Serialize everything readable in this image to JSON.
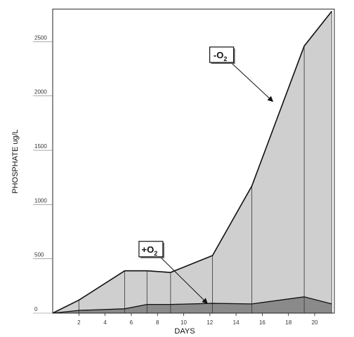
{
  "chart_data": {
    "type": "area",
    "title": "",
    "xlabel": "DAYS",
    "ylabel": "PHOSPHATE   ug/L",
    "x_ticks": [
      2,
      4,
      6,
      8,
      10,
      12,
      14,
      16,
      18,
      20
    ],
    "y_ticks": [
      0,
      500,
      1000,
      1500,
      2000,
      2500
    ],
    "xlim": [
      0,
      21.5
    ],
    "ylim": [
      0,
      2800
    ],
    "series": [
      {
        "name": "-O2",
        "x": [
          0,
          2,
          5.5,
          7.2,
          9,
          12.2,
          15.2,
          19.2,
          21.3
        ],
        "values": [
          0,
          120,
          390,
          390,
          375,
          530,
          1170,
          2460,
          2780
        ]
      },
      {
        "name": "+O2",
        "x": [
          0,
          2,
          5.5,
          7.2,
          9,
          12.2,
          15.2,
          19.2,
          21.3
        ],
        "values": [
          0,
          25,
          40,
          80,
          80,
          90,
          85,
          150,
          85
        ]
      }
    ],
    "annotations": [
      {
        "label": "-O",
        "sub": "2",
        "x": 12.9,
        "y": 2380,
        "points_to_series": "-O2"
      },
      {
        "label": "+O",
        "sub": "2",
        "x": 7.5,
        "y": 590,
        "points_to_series": "+O2"
      }
    ],
    "colors": {
      "upper_fill": "#cfcfcf",
      "lower_fill": "#8a8a8a",
      "line": "#111111",
      "frame": "#222222"
    }
  }
}
